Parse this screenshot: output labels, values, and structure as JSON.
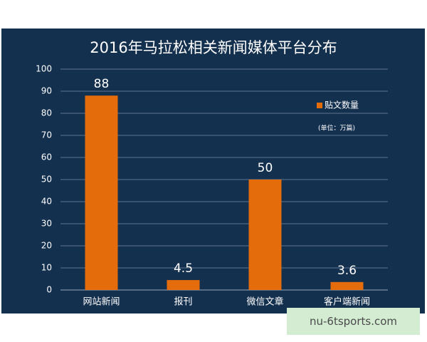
{
  "chart_data": {
    "type": "bar",
    "title": "2016年马拉松相关新闻媒体平台分布",
    "categories": [
      "网站新闻",
      "报刊",
      "微信文章",
      "客户端新闻"
    ],
    "series": [
      {
        "name": "贴文数量",
        "color": "#e46c0a",
        "values": [
          88,
          4.5,
          50,
          3.6
        ]
      }
    ],
    "note": "(单位：万篇)",
    "ylim": [
      0,
      100
    ],
    "yticks": [
      0,
      10,
      20,
      30,
      40,
      50,
      60,
      70,
      80,
      90,
      100
    ],
    "grid": true,
    "legend": "upper right"
  },
  "watermark": "nu-6tsports.com"
}
